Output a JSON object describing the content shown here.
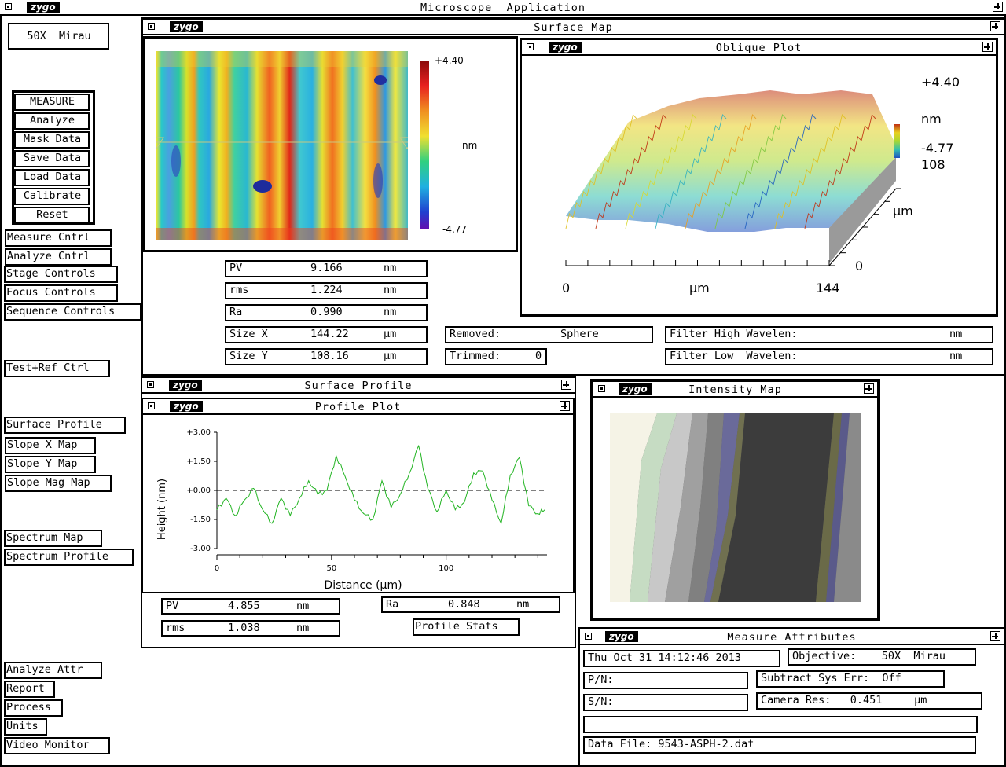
{
  "app": {
    "title": "Microscope  Application",
    "logo": "zygo"
  },
  "objective_button": "50X  Mirau",
  "control_group": [
    "MEASURE",
    "Analyze",
    "Mask Data",
    "Save Data",
    "Load Data",
    "Calibrate",
    "Reset"
  ],
  "left_buttons": {
    "measure_cntrl": "Measure Cntrl",
    "analyze_cntrl": "Analyze Cntrl",
    "stage_controls": "Stage Controls",
    "focus_controls": "Focus Controls",
    "sequence_controls": "Sequence Controls",
    "test_ref_ctrl": "Test+Ref Ctrl",
    "surface_profile": "Surface Profile",
    "slope_x_map": "Slope X Map",
    "slope_y_map": "Slope Y Map",
    "slope_mag_map": "Slope Mag Map",
    "spectrum_map": "Spectrum Map",
    "spectrum_profile": "Spectrum Profile",
    "analyze_attr": "Analyze Attr",
    "report": "Report",
    "process": "Process",
    "units": "Units",
    "video_monitor": "Video Monitor"
  },
  "surface_map": {
    "title": "Surface Map",
    "scale_max": "+4.40",
    "scale_min": "-4.77",
    "scale_unit": "nm",
    "stats": [
      {
        "label": "PV",
        "value": "9.166",
        "unit": "nm"
      },
      {
        "label": "rms",
        "value": "1.224",
        "unit": "nm"
      },
      {
        "label": "Ra",
        "value": "0.990",
        "unit": "nm"
      },
      {
        "label": "Size X",
        "value": "144.22",
        "unit": "µm"
      },
      {
        "label": "Size Y",
        "value": "108.16",
        "unit": "µm"
      }
    ],
    "removed_label": "Removed:",
    "removed_value": "Sphere",
    "trimmed_label": "Trimmed:",
    "trimmed_value": "0",
    "filter_high_label": "Filter High Wavelen:",
    "filter_high_unit": "nm",
    "filter_low_label": "Filter Low  Wavelen:",
    "filter_low_unit": "nm"
  },
  "oblique_plot": {
    "title": "Oblique Plot",
    "z_max": "+4.40",
    "z_unit": "nm",
    "z_min": "-4.77",
    "y_max": "108",
    "y_unit": "µm",
    "y_min": "0",
    "x_min": "0",
    "x_unit": "µm",
    "x_max": "144"
  },
  "surface_profile": {
    "title": "Surface Profile",
    "plot_title": "Profile Plot",
    "stats_left": [
      {
        "label": "PV",
        "value": "4.855",
        "unit": "nm"
      },
      {
        "label": "rms",
        "value": "1.038",
        "unit": "nm"
      }
    ],
    "stats_right": {
      "label": "Ra",
      "value": "0.848",
      "unit": "nm"
    },
    "stats_button": "Profile Stats"
  },
  "chart_data": {
    "type": "line",
    "title": "",
    "xlabel": "Distance (µm)",
    "ylabel": "Height (nm)",
    "xlim": [
      0,
      144
    ],
    "ylim": [
      -3,
      3
    ],
    "x_ticks": [
      "0",
      "50",
      "100"
    ],
    "y_ticks": [
      "+3.00",
      "+1.50",
      "+0.00",
      "-1.50",
      "-3.00"
    ],
    "reference_line": 0,
    "grid": false,
    "series": [
      {
        "color": "#22b422",
        "x": [
          0,
          4,
          8,
          12,
          16,
          20,
          24,
          28,
          32,
          36,
          40,
          44,
          48,
          52,
          56,
          60,
          64,
          68,
          72,
          76,
          80,
          84,
          88,
          92,
          96,
          100,
          104,
          108,
          112,
          116,
          120,
          124,
          128,
          132,
          136,
          140,
          143
        ],
        "y": [
          -1.0,
          -0.4,
          -1.3,
          -0.5,
          0.1,
          -1.0,
          -1.7,
          -0.4,
          -1.3,
          -0.4,
          0.5,
          -0.2,
          0.0,
          1.8,
          0.7,
          -0.5,
          -1.2,
          -1.5,
          0.5,
          -0.9,
          -0.2,
          0.9,
          2.3,
          0.1,
          -1.1,
          0.0,
          -1.0,
          -0.6,
          0.9,
          1.0,
          -0.5,
          -1.7,
          0.8,
          1.7,
          -0.8,
          -1.2,
          -1.0
        ]
      }
    ]
  },
  "intensity_map": {
    "title": "Intensity Map"
  },
  "measure_attributes": {
    "title": "Measure Attributes",
    "date": "Thu Oct 31 14:12:46 2013",
    "objective": "Objective:    50X  Mirau",
    "pn": "P/N:",
    "subtract": "Subtract Sys Err:  Off",
    "sn": "S/N:",
    "camera": "Camera Res:   0.451     µm",
    "blank": "",
    "data_file": "Data File: 9543-ASPH-2.dat"
  },
  "colors": {
    "background": "#ffffff",
    "line": "#000000",
    "profile": "#22b422"
  }
}
